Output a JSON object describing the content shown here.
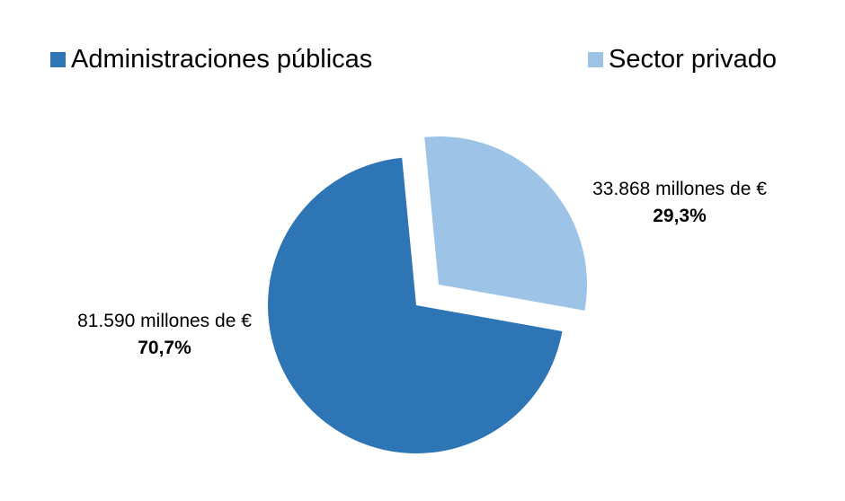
{
  "chart_data": {
    "type": "pie",
    "title": "",
    "legend_position": "top",
    "exploded_slice": "Sector privado",
    "slices": [
      {
        "name": "Administraciones públicas",
        "value": 81590,
        "percent": 70.7,
        "amount_label": "81.590 millones de €",
        "percent_label": "70,7%",
        "color": "#2e75b6"
      },
      {
        "name": "Sector privado",
        "value": 33868,
        "percent": 29.3,
        "amount_label": "33.868 millones de €",
        "percent_label": "29,3%",
        "color": "#9dc3e6"
      }
    ]
  }
}
